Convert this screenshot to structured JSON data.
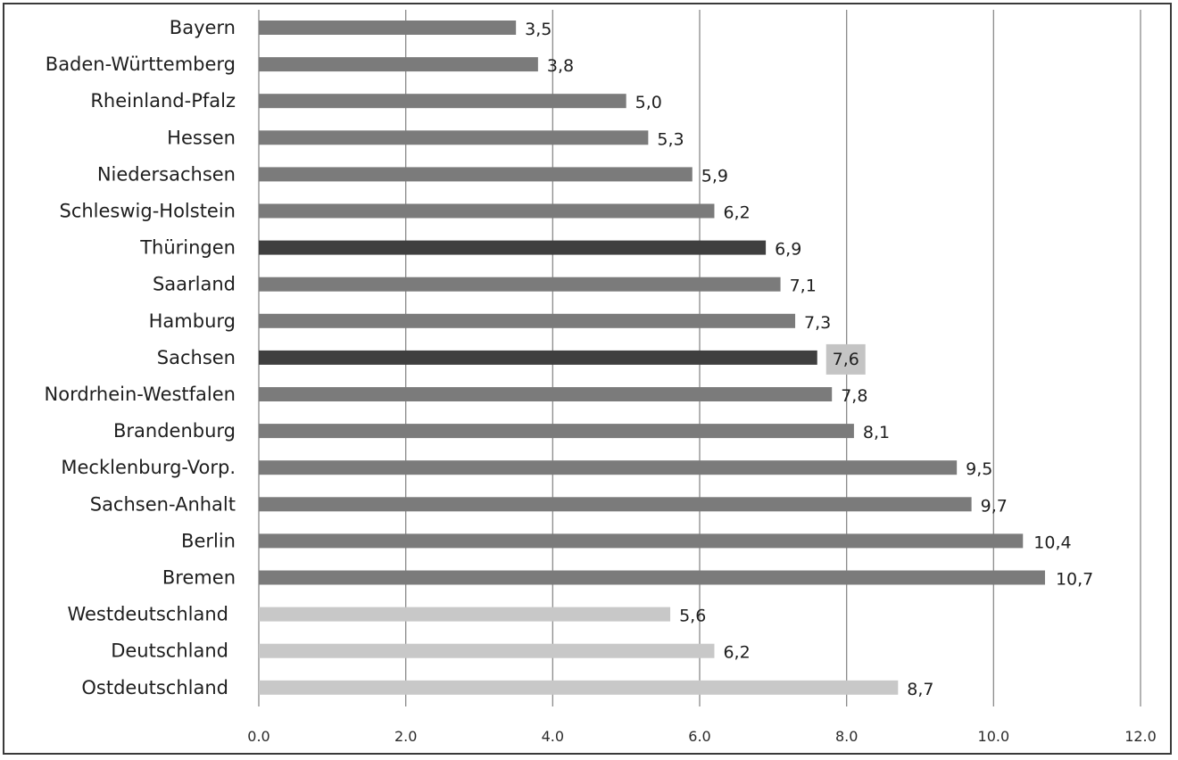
{
  "chart_data": {
    "type": "bar",
    "orientation": "horizontal",
    "categories": [
      "Bayern",
      "Baden-Württemberg",
      "Rheinland-Pfalz",
      "Hessen",
      "Niedersachsen",
      "Schleswig-Holstein",
      "Thüringen",
      "Saarland",
      "Hamburg",
      "Sachsen",
      "Nordrhein-Westfalen",
      "Brandenburg",
      "Mecklenburg-Vorp.",
      "Sachsen-Anhalt",
      "Berlin",
      "Bremen",
      "Westdeutschland",
      "Deutschland",
      "Ostdeutschland"
    ],
    "values": [
      3.5,
      3.8,
      5.0,
      5.3,
      5.9,
      6.2,
      6.9,
      7.1,
      7.3,
      7.6,
      7.8,
      8.1,
      9.5,
      9.7,
      10.4,
      10.7,
      5.6,
      6.2,
      8.7
    ],
    "value_labels": [
      "3,5",
      "3,8",
      "5,0",
      "5,3",
      "5,9",
      "6,2",
      "6,9",
      "7,1",
      "7,3",
      "7,6",
      "7,8",
      "8,1",
      "9,5",
      "9,7",
      "10,4",
      "10,7",
      "5,6",
      "6,2",
      "8,7"
    ],
    "bar_colors": [
      "#7b7b7b",
      "#7b7b7b",
      "#7b7b7b",
      "#7b7b7b",
      "#7b7b7b",
      "#7b7b7b",
      "#3f3f3f",
      "#7b7b7b",
      "#7b7b7b",
      "#3f3f3f",
      "#7b7b7b",
      "#7b7b7b",
      "#7b7b7b",
      "#7b7b7b",
      "#7b7b7b",
      "#7b7b7b",
      "#c8c8c8",
      "#c8c8c8",
      "#c8c8c8"
    ],
    "highlighted_label_index": 9,
    "highlight_color": "#c4c4c4",
    "xlim": [
      0,
      12
    ],
    "x_ticks": [
      0,
      2,
      4,
      6,
      8,
      10,
      12
    ],
    "x_tick_labels": [
      "0.0",
      "2.0",
      "4.0",
      "6.0",
      "8.0",
      "10.0",
      "12.0"
    ],
    "grid": "vertical",
    "title": "",
    "xlabel": "",
    "ylabel": ""
  }
}
